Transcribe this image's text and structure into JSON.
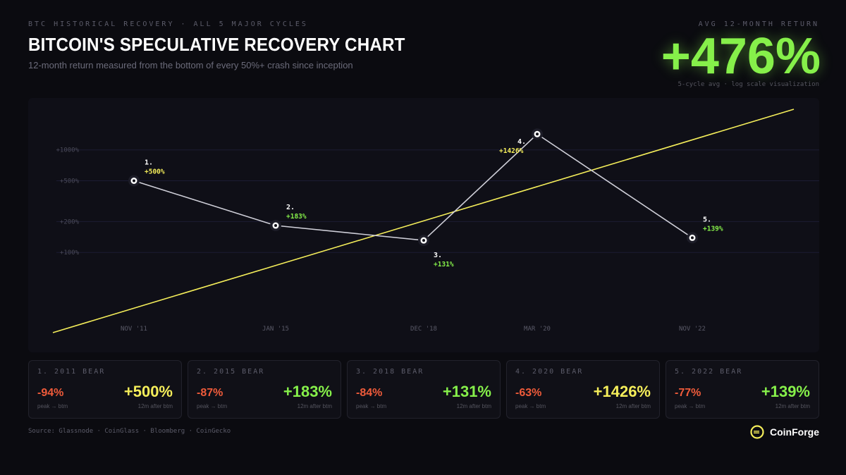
{
  "header": {
    "eyebrow": "BTC HISTORICAL RECOVERY · ALL 5 MAJOR CYCLES",
    "title": "BITCOIN'S SPECULATIVE RECOVERY CHART",
    "subtitle": "12-month return measured from the bottom of every 50%+ crash since inception"
  },
  "kpi": {
    "label": "AVG 12-MONTH RETURN",
    "value": "+476%",
    "note": "5-cycle avg · log scale visualization"
  },
  "colors": {
    "background": "#0b0b10",
    "accent_green": "#86f04a",
    "accent_yellow": "#f5ee5a",
    "drawdown_red": "#ef5b3a",
    "line": "#cfcfd8"
  },
  "chart_data": {
    "type": "line",
    "scale": "log",
    "x": [
      "NOV '11",
      "JAN '15",
      "DEC '18",
      "MAR '20",
      "NOV '22"
    ],
    "y_ticks": [
      100,
      200,
      500,
      1000
    ],
    "y_tick_labels": [
      "+100%",
      "+200%",
      "+500%",
      "+1000%"
    ],
    "series": [
      {
        "values": [
          500,
          183,
          131,
          1426,
          139
        ],
        "point_labels": [
          "1.",
          "2.",
          "3.",
          "4.",
          "5."
        ],
        "value_labels": [
          "+500%",
          "+183%",
          "+131%",
          "+1426%",
          "+139%"
        ]
      }
    ],
    "trend_line": {
      "color": "yellow"
    },
    "grid": true
  },
  "cards": [
    {
      "title": "1. 2011 BEAR",
      "drawdown": "-94%",
      "drawdown_label": "peak → btm",
      "return": "+500%",
      "return_label": "12m after btm",
      "color": "yellow"
    },
    {
      "title": "2. 2015 BEAR",
      "drawdown": "-87%",
      "drawdown_label": "peak → btm",
      "return": "+183%",
      "return_label": "12m after btm",
      "color": "green"
    },
    {
      "title": "3. 2018 BEAR",
      "drawdown": "-84%",
      "drawdown_label": "peak → btm",
      "return": "+131%",
      "return_label": "12m after btm",
      "color": "green"
    },
    {
      "title": "4. 2020 BEAR",
      "drawdown": "-63%",
      "drawdown_label": "peak → btm",
      "return": "+1426%",
      "return_label": "12m after btm",
      "color": "yellow"
    },
    {
      "title": "5. 2022 BEAR",
      "drawdown": "-77%",
      "drawdown_label": "peak → btm",
      "return": "+139%",
      "return_label": "12m after btm",
      "color": "green"
    }
  ],
  "footer": {
    "source": "Source: Glassnode · CoinGlass · Bloomberg · CoinGecko",
    "brand": "CoinForge",
    "brand_icon": "coinforge-logo-icon"
  }
}
